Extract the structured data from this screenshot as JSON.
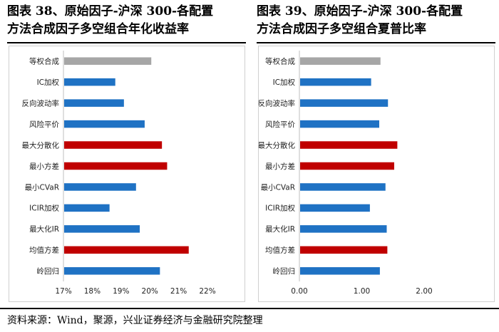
{
  "figures": [
    {
      "title_line1": "图表 38、原始因子-沪深 300-各配置",
      "title_line2": "方法合成因子多空组合年化收益率"
    },
    {
      "title_line1": "图表 39、原始因子-沪深 300-各配置",
      "title_line2": "方法合成因子多空组合夏普比率"
    }
  ],
  "source_note": "资料来源：Wind，聚源，兴业证券经济与金融研究院整理",
  "colors": {
    "gray": "#a6a6a6",
    "blue": "#1f72c4",
    "red": "#c00000"
  },
  "chart_data": [
    {
      "type": "bar",
      "orientation": "horizontal",
      "categories": [
        "等权合成",
        "IC加权",
        "反向波动率",
        "风险平价",
        "最大分散化",
        "最小方差",
        "最小CVaR",
        "ICIR加权",
        "最大化IR",
        "均值方差",
        "岭回归"
      ],
      "values": [
        20.05,
        18.8,
        19.1,
        19.82,
        20.42,
        20.6,
        19.52,
        18.6,
        19.65,
        21.35,
        20.35
      ],
      "bar_colors": [
        "gray",
        "blue",
        "blue",
        "blue",
        "red",
        "red",
        "blue",
        "blue",
        "blue",
        "red",
        "blue"
      ],
      "xlim": [
        17,
        22
      ],
      "xticks": [
        "17%",
        "18%",
        "19%",
        "20%",
        "21%",
        "22%"
      ],
      "unit": "%",
      "grid": false
    },
    {
      "type": "bar",
      "orientation": "horizontal",
      "categories": [
        "等权合成",
        "IC加权",
        "反向波动率",
        "风险平价",
        "最大分散化",
        "最小方差",
        "最小CVaR",
        "ICIR加权",
        "最大化IR",
        "均值方差",
        "岭回归"
      ],
      "values": [
        1.3,
        1.15,
        1.42,
        1.28,
        1.57,
        1.52,
        1.38,
        1.13,
        1.4,
        1.41,
        1.29
      ],
      "bar_colors": [
        "gray",
        "blue",
        "blue",
        "blue",
        "red",
        "red",
        "blue",
        "blue",
        "blue",
        "red",
        "blue"
      ],
      "xlim": [
        0,
        2
      ],
      "xticks": [
        "0.00",
        "1.00",
        "2.00"
      ],
      "grid": false
    }
  ]
}
